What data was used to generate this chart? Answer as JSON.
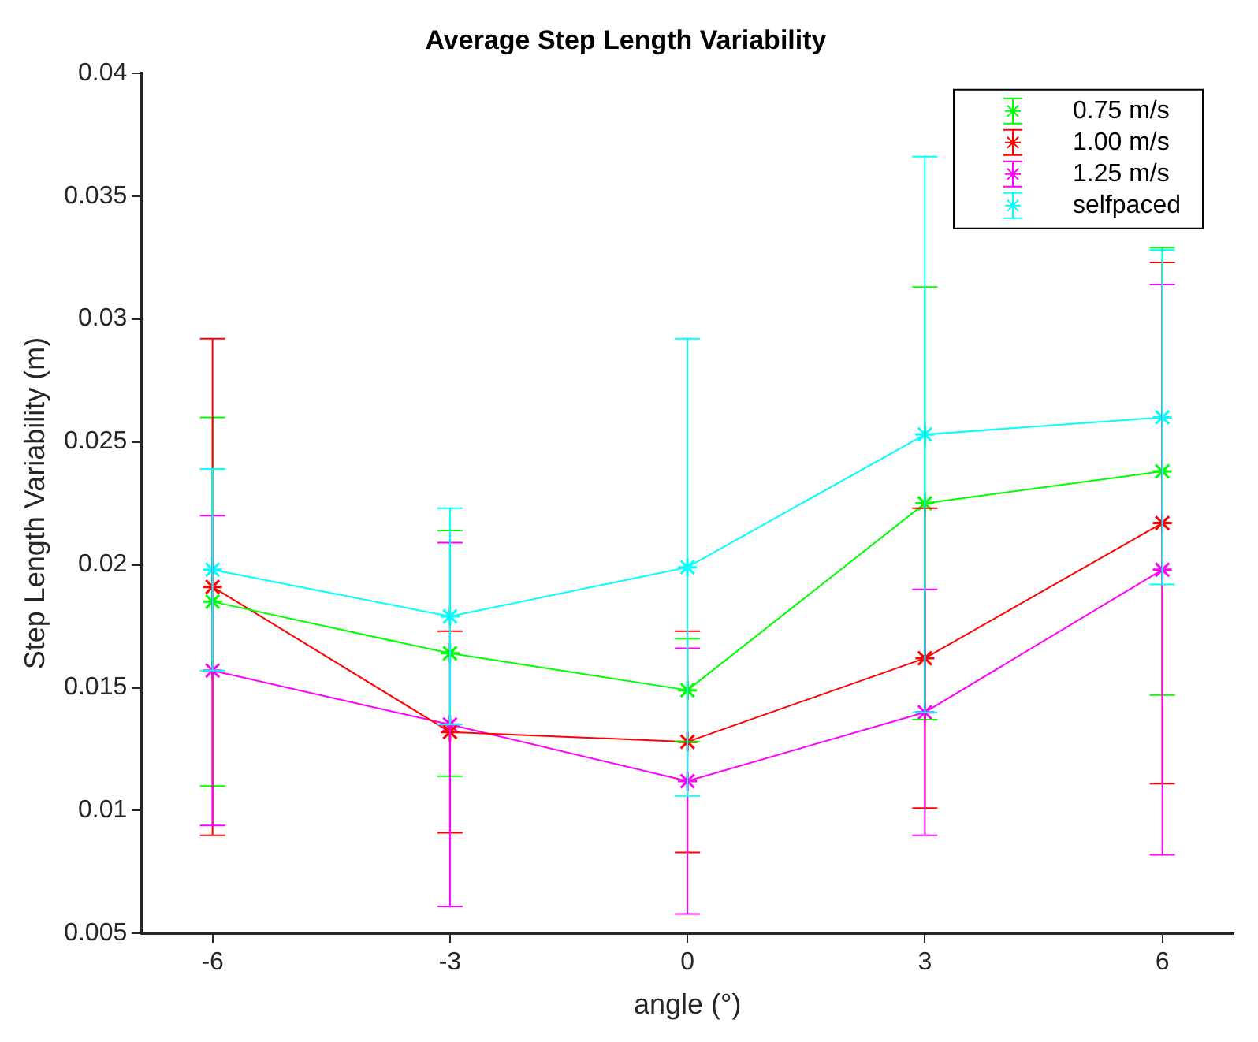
{
  "chart_data": {
    "type": "line",
    "title": "Average Step Length Variability",
    "xlabel": "angle (°)",
    "ylabel": "Step Length Variability (m)",
    "x": [
      -6,
      -3,
      0,
      3,
      6
    ],
    "xlim": [
      -6.9,
      6.9
    ],
    "xticks": [
      -6,
      -3,
      0,
      3,
      6
    ],
    "ylim": [
      0.005,
      0.04
    ],
    "yticks": [
      0.005,
      0.01,
      0.015,
      0.02,
      0.025,
      0.03,
      0.035,
      0.04
    ],
    "grid": false,
    "legend": "top right",
    "marker": "cross",
    "line_style": "solid",
    "series": [
      {
        "name": "0.75 m/s",
        "color": "#00ff00",
        "values": [
          0.0185,
          0.0164,
          0.0149,
          0.0225,
          0.0238
        ],
        "errors": [
          0.0075,
          0.005,
          0.0021,
          0.0088,
          0.0091
        ]
      },
      {
        "name": "1.00 m/s",
        "color": "#ff0000",
        "values": [
          0.0191,
          0.0132,
          0.0128,
          0.0162,
          0.0217
        ],
        "errors": [
          0.0101,
          0.0041,
          0.0045,
          0.0061,
          0.0106
        ]
      },
      {
        "name": "1.25 m/s",
        "color": "#ff00ff",
        "values": [
          0.0157,
          0.0135,
          0.0112,
          0.014,
          0.0198
        ],
        "errors": [
          0.0063,
          0.0074,
          0.0054,
          0.005,
          0.0116
        ]
      },
      {
        "name": "selfpaced",
        "color": "#00ffff",
        "values": [
          0.0198,
          0.0179,
          0.0199,
          0.0253,
          0.026
        ],
        "errors": [
          0.0041,
          0.0044,
          0.0093,
          0.0113,
          0.0068
        ]
      }
    ]
  }
}
